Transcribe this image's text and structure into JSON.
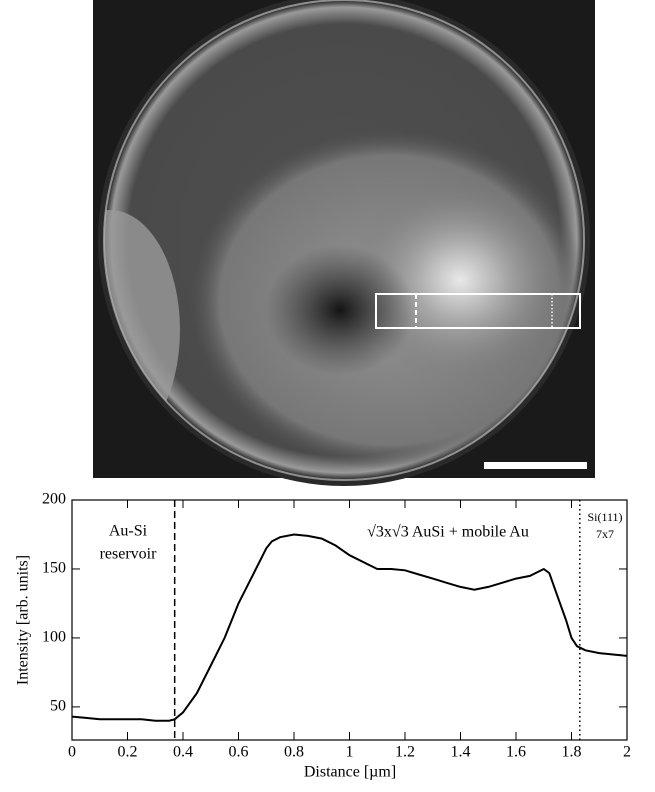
{
  "chart_data": {
    "type": "line",
    "x_label": "Distance [µm]",
    "y_label": "Intensity [arb. units]",
    "x": [
      0,
      0.05,
      0.1,
      0.15,
      0.2,
      0.25,
      0.3,
      0.35,
      0.37,
      0.4,
      0.45,
      0.5,
      0.55,
      0.6,
      0.65,
      0.7,
      0.72,
      0.75,
      0.8,
      0.85,
      0.9,
      0.95,
      1.0,
      1.05,
      1.1,
      1.15,
      1.2,
      1.25,
      1.3,
      1.35,
      1.4,
      1.45,
      1.5,
      1.55,
      1.6,
      1.65,
      1.7,
      1.72,
      1.75,
      1.78,
      1.8,
      1.82,
      1.85,
      1.9,
      1.95,
      2.0
    ],
    "values": [
      43,
      42,
      41,
      41,
      41,
      41,
      40,
      40,
      41,
      46,
      60,
      80,
      100,
      125,
      145,
      165,
      170,
      173,
      175,
      174,
      172,
      167,
      160,
      155,
      150,
      150,
      149,
      146,
      143,
      140,
      137,
      135,
      137,
      140,
      143,
      145,
      150,
      147,
      130,
      113,
      100,
      94,
      91,
      89,
      88,
      87
    ],
    "color": "#000000",
    "xlim": [
      0,
      2
    ],
    "xticks": [
      0,
      0.2,
      0.4,
      0.6,
      0.8,
      1,
      1.2,
      1.4,
      1.6,
      1.8,
      2
    ],
    "ylim": [
      26,
      200
    ],
    "yticks": [
      50,
      100,
      150,
      200
    ],
    "markers": [
      {
        "x": 0.37,
        "style": "dashed"
      },
      {
        "x": 1.83,
        "style": "dotted"
      }
    ],
    "annotations": [
      "Au-Si",
      "reservoir",
      "√3x√3 AuSi + mobile Au",
      "Si(111)",
      "7x7"
    ]
  }
}
